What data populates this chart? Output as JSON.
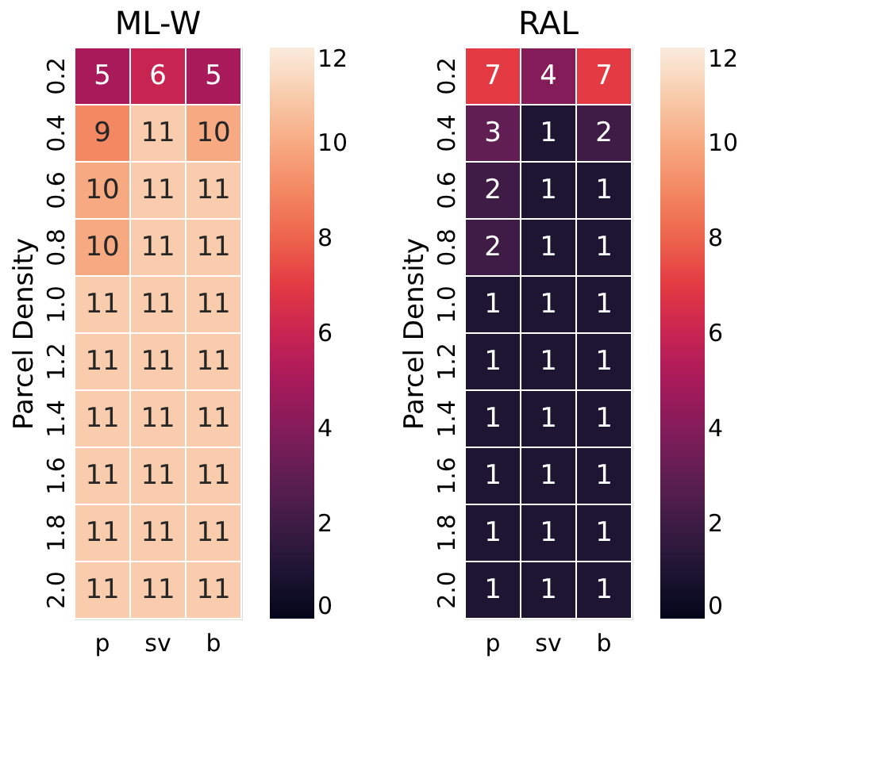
{
  "chart_data": [
    {
      "type": "heatmap",
      "title": "ML-W",
      "ylabel": "Parcel Density",
      "categories": [
        "p",
        "sv",
        "b"
      ],
      "y_categories": [
        "0.2",
        "0.4",
        "0.6",
        "0.8",
        "1.0",
        "1.2",
        "1.4",
        "1.6",
        "1.8",
        "2.0"
      ],
      "cells": [
        [
          5,
          6,
          5
        ],
        [
          9,
          11,
          10
        ],
        [
          10,
          11,
          11
        ],
        [
          10,
          11,
          11
        ],
        [
          11,
          11,
          11
        ],
        [
          11,
          11,
          11
        ],
        [
          11,
          11,
          11
        ],
        [
          11,
          11,
          11
        ],
        [
          11,
          11,
          11
        ],
        [
          11,
          11,
          11
        ]
      ],
      "data_labels": true,
      "clim": [
        0,
        12
      ],
      "cticks": [
        0,
        2,
        4,
        6,
        8,
        10,
        12
      ]
    },
    {
      "type": "heatmap",
      "title": "RAL",
      "ylabel": "Parcel Density",
      "categories": [
        "p",
        "sv",
        "b"
      ],
      "y_categories": [
        "0.2",
        "0.4",
        "0.6",
        "0.8",
        "1.0",
        "1.2",
        "1.4",
        "1.6",
        "1.8",
        "2.0"
      ],
      "cells": [
        [
          7,
          4,
          7
        ],
        [
          3,
          1,
          2
        ],
        [
          2,
          1,
          1
        ],
        [
          2,
          1,
          1
        ],
        [
          1,
          1,
          1
        ],
        [
          1,
          1,
          1
        ],
        [
          1,
          1,
          1
        ],
        [
          1,
          1,
          1
        ],
        [
          1,
          1,
          1
        ],
        [
          1,
          1,
          1
        ]
      ],
      "data_labels": true,
      "clim": [
        0,
        12
      ],
      "cticks": [
        0,
        2,
        4,
        6,
        8,
        10,
        12
      ]
    }
  ]
}
